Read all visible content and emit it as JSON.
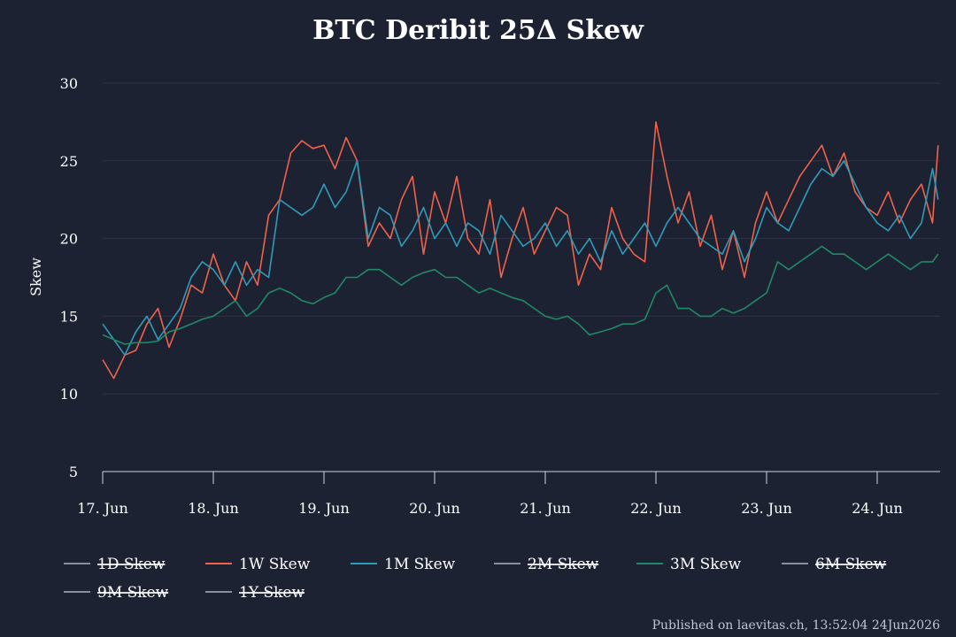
{
  "chart_data": {
    "type": "line",
    "title": "BTC Deribit 25Δ Skew",
    "ylabel": "Skew",
    "xlabel": "",
    "ylim": [
      5,
      30
    ],
    "yticks": [
      5,
      10,
      15,
      20,
      25,
      30
    ],
    "xlim": [
      0,
      7.55
    ],
    "xticks": [
      {
        "x": 0,
        "label": "17. Jun"
      },
      {
        "x": 1,
        "label": "18. Jun"
      },
      {
        "x": 2,
        "label": "19. Jun"
      },
      {
        "x": 3,
        "label": "20. Jun"
      },
      {
        "x": 4,
        "label": "21. Jun"
      },
      {
        "x": 5,
        "label": "22. Jun"
      },
      {
        "x": 6,
        "label": "23. Jun"
      },
      {
        "x": 7,
        "label": "24. Jun"
      }
    ],
    "x_unit": "days after 17. Jun",
    "grid": true,
    "legend_position": "bottom",
    "series": [
      {
        "name": "1D Skew",
        "color": "#8a8f99",
        "visible": false,
        "x": [],
        "y": []
      },
      {
        "name": "1W Skew",
        "color": "#f0624a",
        "visible": true,
        "x": [
          0,
          0.1,
          0.2,
          0.3,
          0.4,
          0.5,
          0.6,
          0.7,
          0.8,
          0.9,
          1.0,
          1.1,
          1.2,
          1.3,
          1.4,
          1.5,
          1.6,
          1.7,
          1.8,
          1.9,
          2.0,
          2.1,
          2.2,
          2.3,
          2.4,
          2.5,
          2.6,
          2.7,
          2.8,
          2.9,
          3.0,
          3.1,
          3.2,
          3.3,
          3.4,
          3.5,
          3.6,
          3.7,
          3.8,
          3.9,
          4.0,
          4.1,
          4.2,
          4.3,
          4.4,
          4.5,
          4.6,
          4.7,
          4.8,
          4.9,
          5.0,
          5.1,
          5.2,
          5.3,
          5.4,
          5.5,
          5.6,
          5.7,
          5.8,
          5.9,
          6.0,
          6.1,
          6.2,
          6.3,
          6.4,
          6.5,
          6.6,
          6.7,
          6.8,
          6.9,
          7.0,
          7.1,
          7.2,
          7.3,
          7.4,
          7.5,
          7.55
        ],
        "y": [
          12.2,
          11.0,
          12.5,
          12.8,
          14.5,
          15.5,
          13.0,
          14.8,
          17.0,
          16.5,
          19.0,
          17.0,
          16.0,
          18.5,
          17.0,
          21.5,
          22.5,
          25.5,
          26.3,
          25.8,
          26.0,
          24.5,
          26.5,
          25.0,
          19.5,
          21.0,
          20.0,
          22.5,
          24.0,
          19.0,
          23.0,
          21.0,
          24.0,
          20.0,
          19.0,
          22.5,
          17.5,
          20.0,
          22.0,
          19.0,
          20.5,
          22.0,
          21.5,
          17.0,
          19.0,
          18.0,
          22.0,
          20.0,
          19.0,
          18.5,
          27.5,
          24.0,
          21.0,
          23.0,
          19.5,
          21.5,
          18.0,
          20.5,
          17.5,
          21.0,
          23.0,
          21.0,
          22.5,
          24.0,
          25.0,
          26.0,
          24.0,
          25.5,
          23.0,
          22.0,
          21.5,
          23.0,
          21.0,
          22.5,
          23.5,
          21.0,
          26.0
        ]
      },
      {
        "name": "1M Skew",
        "color": "#2f9bb9",
        "visible": true,
        "x": [
          0,
          0.1,
          0.2,
          0.3,
          0.4,
          0.5,
          0.6,
          0.7,
          0.8,
          0.9,
          1.0,
          1.1,
          1.2,
          1.3,
          1.4,
          1.5,
          1.6,
          1.7,
          1.8,
          1.9,
          2.0,
          2.1,
          2.2,
          2.3,
          2.4,
          2.5,
          2.6,
          2.7,
          2.8,
          2.9,
          3.0,
          3.1,
          3.2,
          3.3,
          3.4,
          3.5,
          3.6,
          3.7,
          3.8,
          3.9,
          4.0,
          4.1,
          4.2,
          4.3,
          4.4,
          4.5,
          4.6,
          4.7,
          4.8,
          4.9,
          5.0,
          5.1,
          5.2,
          5.3,
          5.4,
          5.5,
          5.6,
          5.7,
          5.8,
          5.9,
          6.0,
          6.1,
          6.2,
          6.3,
          6.4,
          6.5,
          6.6,
          6.7,
          6.8,
          6.9,
          7.0,
          7.1,
          7.2,
          7.3,
          7.4,
          7.5,
          7.55
        ],
        "y": [
          14.5,
          13.5,
          12.5,
          14.0,
          15.0,
          13.5,
          14.5,
          15.5,
          17.5,
          18.5,
          18.0,
          17.0,
          18.5,
          17.0,
          18.0,
          17.5,
          22.5,
          22.0,
          21.5,
          22.0,
          23.5,
          22.0,
          23.0,
          25.0,
          20.0,
          22.0,
          21.5,
          19.5,
          20.5,
          22.0,
          20.0,
          21.0,
          19.5,
          21.0,
          20.5,
          19.0,
          21.5,
          20.5,
          19.5,
          20.0,
          21.0,
          19.5,
          20.5,
          19.0,
          20.0,
          18.5,
          20.5,
          19.0,
          20.0,
          21.0,
          19.5,
          21.0,
          22.0,
          21.0,
          20.0,
          19.5,
          19.0,
          20.5,
          18.5,
          20.0,
          22.0,
          21.0,
          20.5,
          22.0,
          23.5,
          24.5,
          24.0,
          25.0,
          23.5,
          22.0,
          21.0,
          20.5,
          21.5,
          20.0,
          21.0,
          24.5,
          22.5
        ]
      },
      {
        "name": "2M Skew",
        "color": "#8a8f99",
        "visible": false,
        "x": [],
        "y": []
      },
      {
        "name": "3M Skew",
        "color": "#1f8a63",
        "visible": true,
        "x": [
          0,
          0.1,
          0.2,
          0.3,
          0.4,
          0.5,
          0.6,
          0.7,
          0.8,
          0.9,
          1.0,
          1.1,
          1.2,
          1.3,
          1.4,
          1.5,
          1.6,
          1.7,
          1.8,
          1.9,
          2.0,
          2.1,
          2.2,
          2.3,
          2.4,
          2.5,
          2.6,
          2.7,
          2.8,
          2.9,
          3.0,
          3.1,
          3.2,
          3.3,
          3.4,
          3.5,
          3.6,
          3.7,
          3.8,
          3.9,
          4.0,
          4.1,
          4.2,
          4.3,
          4.4,
          4.5,
          4.6,
          4.7,
          4.8,
          4.9,
          5.0,
          5.1,
          5.2,
          5.3,
          5.4,
          5.5,
          5.6,
          5.7,
          5.8,
          5.9,
          6.0,
          6.1,
          6.2,
          6.3,
          6.4,
          6.5,
          6.6,
          6.7,
          6.8,
          6.9,
          7.0,
          7.1,
          7.2,
          7.3,
          7.4,
          7.5,
          7.55
        ],
        "y": [
          13.8,
          13.5,
          13.2,
          13.3,
          13.3,
          13.4,
          14.0,
          14.2,
          14.5,
          14.8,
          15.0,
          15.5,
          16.0,
          15.0,
          15.5,
          16.5,
          16.8,
          16.5,
          16.0,
          15.8,
          16.2,
          16.5,
          17.5,
          17.5,
          18.0,
          18.0,
          17.5,
          17.0,
          17.5,
          17.8,
          18.0,
          17.5,
          17.5,
          17.0,
          16.5,
          16.8,
          16.5,
          16.2,
          16.0,
          15.5,
          15.0,
          14.8,
          15.0,
          14.5,
          13.8,
          14.0,
          14.2,
          14.5,
          14.5,
          14.8,
          16.5,
          17.0,
          15.5,
          15.5,
          15.0,
          15.0,
          15.5,
          15.2,
          15.5,
          16.0,
          16.5,
          18.5,
          18.0,
          18.5,
          19.0,
          19.5,
          19.0,
          19.0,
          18.5,
          18.0,
          18.5,
          19.0,
          18.5,
          18.0,
          18.5,
          18.5,
          19.0
        ]
      },
      {
        "name": "6M Skew",
        "color": "#8a8f99",
        "visible": false,
        "x": [],
        "y": []
      },
      {
        "name": "9M Skew",
        "color": "#8a8f99",
        "visible": false,
        "x": [],
        "y": []
      },
      {
        "name": "1Y Skew",
        "color": "#8a8f99",
        "visible": false,
        "x": [],
        "y": []
      }
    ]
  },
  "footer": "Published on laevitas.ch, 13:52:04 24Jun2026",
  "colors": {
    "background": "#1d2233",
    "grid": "#2b3448",
    "axis": "#d0d4dc",
    "hidden_legend": "#8a8f99"
  }
}
